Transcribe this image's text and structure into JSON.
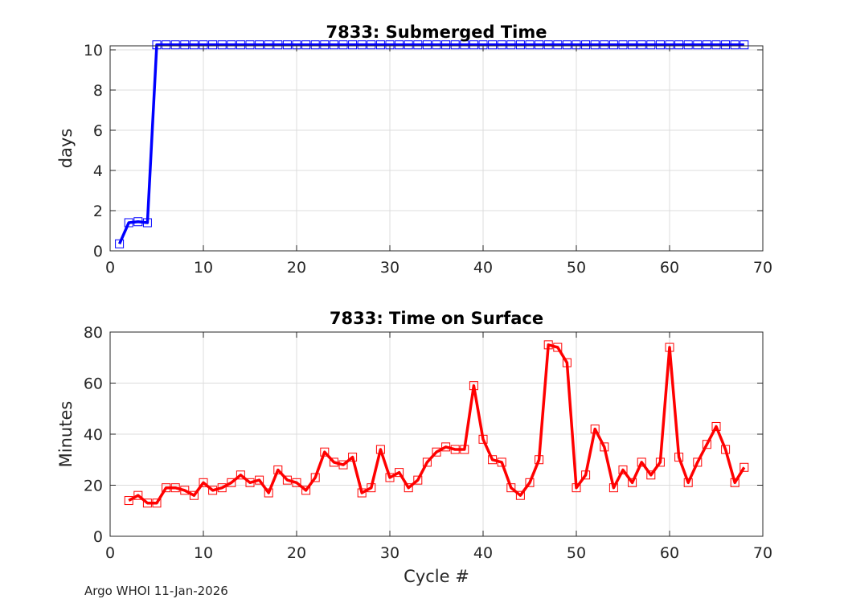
{
  "footer_text": "Argo WHOI 11-Jan-2026",
  "chart_data": [
    {
      "type": "line",
      "title": "7833: Submerged Time",
      "xlabel": "",
      "ylabel": "days",
      "xlim": [
        0,
        70
      ],
      "ylim": [
        0,
        10.2
      ],
      "xticks": [
        0,
        10,
        20,
        30,
        40,
        50,
        60,
        70
      ],
      "yticks": [
        0,
        2,
        4,
        6,
        8,
        10
      ],
      "grid": true,
      "series": [
        {
          "name": "submerged",
          "color": "#0000ff",
          "marker": "square",
          "x": [
            1,
            2,
            3,
            4,
            5,
            6,
            7,
            8,
            9,
            10,
            11,
            12,
            13,
            14,
            15,
            16,
            17,
            18,
            19,
            20,
            21,
            22,
            23,
            24,
            25,
            26,
            27,
            28,
            29,
            30,
            31,
            32,
            33,
            34,
            35,
            36,
            37,
            38,
            39,
            40,
            41,
            42,
            43,
            44,
            45,
            46,
            47,
            48,
            49,
            50,
            51,
            52,
            53,
            54,
            55,
            56,
            57,
            58,
            59,
            60,
            61,
            62,
            63,
            64,
            65,
            66,
            67,
            68
          ],
          "values": [
            0.35,
            1.4,
            1.45,
            1.4,
            10.25,
            10.25,
            10.25,
            10.25,
            10.25,
            10.25,
            10.25,
            10.25,
            10.25,
            10.25,
            10.25,
            10.25,
            10.25,
            10.25,
            10.25,
            10.25,
            10.25,
            10.25,
            10.25,
            10.25,
            10.25,
            10.25,
            10.25,
            10.25,
            10.25,
            10.25,
            10.25,
            10.25,
            10.25,
            10.25,
            10.25,
            10.25,
            10.25,
            10.25,
            10.25,
            10.25,
            10.25,
            10.25,
            10.25,
            10.25,
            10.25,
            10.25,
            10.25,
            10.25,
            10.25,
            10.25,
            10.25,
            10.25,
            10.25,
            10.25,
            10.25,
            10.25,
            10.25,
            10.25,
            10.25,
            10.25,
            10.25,
            10.25,
            10.25,
            10.25,
            10.25,
            10.25,
            10.25,
            10.25
          ]
        }
      ]
    },
    {
      "type": "line",
      "title": "7833: Time on Surface",
      "xlabel": "Cycle #",
      "ylabel": "Minutes",
      "xlim": [
        0,
        70
      ],
      "ylim": [
        0,
        80
      ],
      "xticks": [
        0,
        10,
        20,
        30,
        40,
        50,
        60,
        70
      ],
      "yticks": [
        0,
        20,
        40,
        60,
        80
      ],
      "grid": true,
      "series": [
        {
          "name": "surface",
          "color": "#ff0000",
          "marker": "square",
          "x": [
            2,
            3,
            4,
            5,
            6,
            7,
            8,
            9,
            10,
            11,
            12,
            13,
            14,
            15,
            16,
            17,
            18,
            19,
            20,
            21,
            22,
            23,
            24,
            25,
            26,
            27,
            28,
            29,
            30,
            31,
            32,
            33,
            34,
            35,
            36,
            37,
            38,
            39,
            40,
            41,
            42,
            43,
            44,
            45,
            46,
            47,
            48,
            49,
            50,
            51,
            52,
            53,
            54,
            55,
            56,
            57,
            58,
            59,
            60,
            61,
            62,
            63,
            64,
            65,
            66,
            67,
            68
          ],
          "values": [
            14,
            16,
            13,
            13,
            19,
            19,
            18,
            16,
            21,
            18,
            19,
            21,
            24,
            21,
            22,
            17,
            26,
            22,
            21,
            18,
            23,
            33,
            29,
            28,
            31,
            17,
            19,
            34,
            23,
            25,
            19,
            22,
            29,
            33,
            35,
            34,
            34,
            59,
            38,
            30,
            29,
            19,
            16,
            21,
            30,
            75,
            74,
            68,
            19,
            24,
            42,
            35,
            19,
            26,
            21,
            29,
            24,
            29,
            74,
            31,
            21,
            29,
            36,
            43,
            34,
            21,
            27
          ]
        }
      ]
    }
  ]
}
